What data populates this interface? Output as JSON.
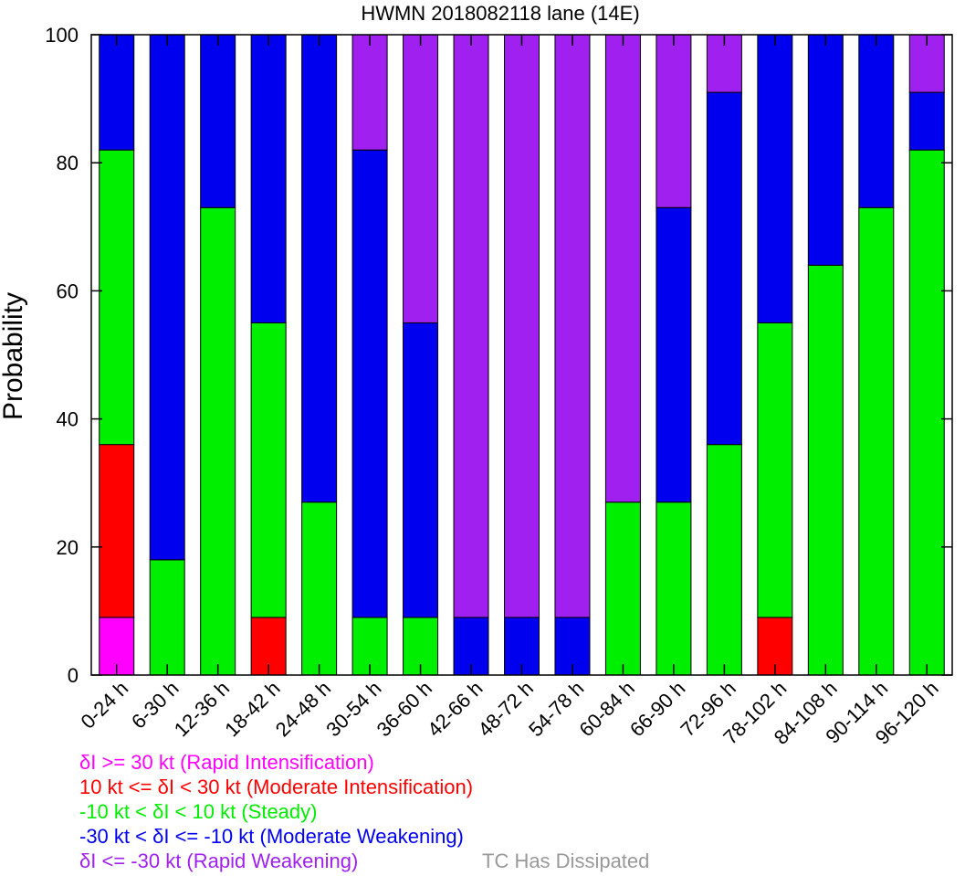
{
  "chart_data": {
    "type": "bar",
    "stacked": true,
    "title": "HWMN 2018082118 lane (14E)",
    "ylabel": "Probability",
    "xlabel": "",
    "ylim": [
      0,
      100
    ],
    "yticks": [
      "0",
      "20",
      "40",
      "60",
      "80",
      "100"
    ],
    "categories": [
      "0-24 h",
      "6-30 h",
      "12-36 h",
      "18-42 h",
      "24-48 h",
      "30-54 h",
      "36-60 h",
      "42-66 h",
      "48-72 h",
      "54-78 h",
      "60-84 h",
      "66-90 h",
      "72-96 h",
      "78-102 h",
      "84-108 h",
      "90-114 h",
      "96-120 h"
    ],
    "series": [
      {
        "key": "ri",
        "color": "#ff00ff",
        "values": [
          9,
          0,
          0,
          0,
          0,
          0,
          0,
          0,
          0,
          0,
          0,
          0,
          0,
          0,
          0,
          0,
          0
        ]
      },
      {
        "key": "mi",
        "color": "#ff0000",
        "values": [
          27,
          0,
          0,
          9,
          0,
          0,
          0,
          0,
          0,
          0,
          0,
          0,
          0,
          9,
          0,
          0,
          0
        ]
      },
      {
        "key": "steady",
        "color": "#00ee00",
        "values": [
          46,
          18,
          73,
          46,
          27,
          9,
          9,
          0,
          0,
          0,
          27,
          27,
          36,
          46,
          64,
          73,
          82
        ]
      },
      {
        "key": "mw",
        "color": "#0000ee",
        "values": [
          18,
          82,
          27,
          45,
          73,
          73,
          46,
          9,
          9,
          9,
          0,
          46,
          55,
          45,
          36,
          27,
          9
        ]
      },
      {
        "key": "rw",
        "color": "#a020f0",
        "values": [
          0,
          0,
          0,
          0,
          0,
          18,
          45,
          91,
          91,
          91,
          73,
          27,
          9,
          0,
          0,
          0,
          9
        ]
      }
    ],
    "legend": {
      "position": "bottom-left",
      "items": [
        {
          "text": "δI >= 30 kt (Rapid Intensification)",
          "color": "#ff00ff"
        },
        {
          "text": "10 kt <= δI < 30 kt (Moderate Intensification)",
          "color": "#ff0000"
        },
        {
          "text": "-10 kt < δI < 10 kt (Steady)",
          "color": "#00ee00"
        },
        {
          "text": "-30 kt < δI <= -10 kt (Moderate Weakening)",
          "color": "#0000ee"
        },
        {
          "text": "δI <= -30 kt (Rapid Weakening)",
          "color": "#a020f0"
        }
      ],
      "extra": {
        "text": "TC Has Dissipated",
        "color": "#999999"
      }
    },
    "grid": false
  }
}
